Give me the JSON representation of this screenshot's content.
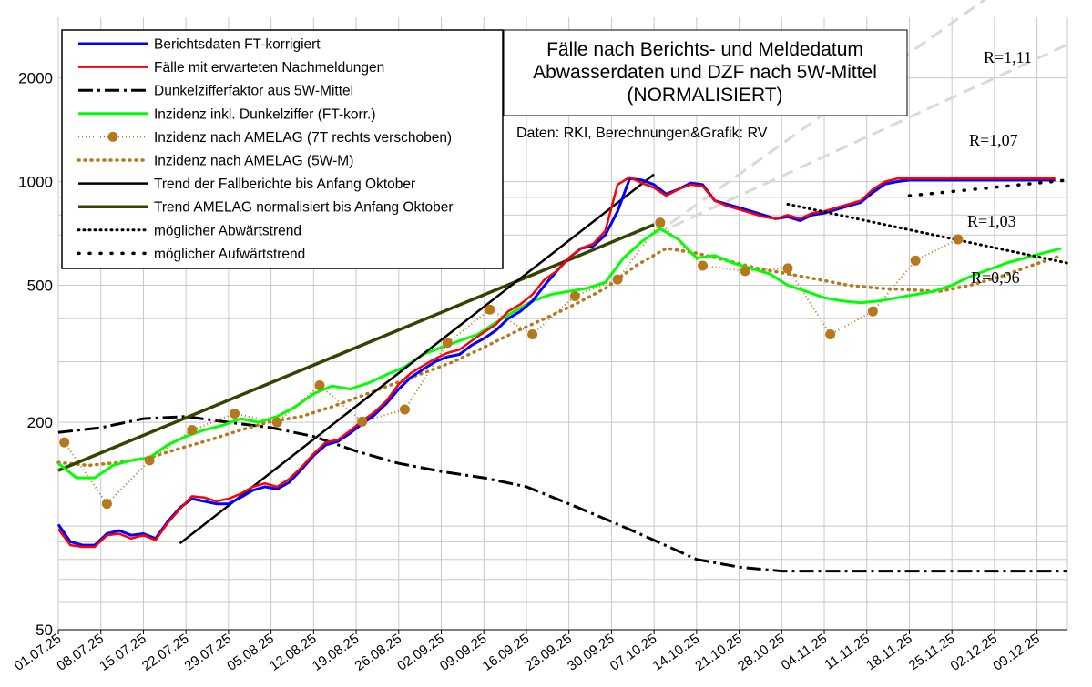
{
  "chart_data": {
    "type": "line",
    "title_lines": [
      "Fälle nach Berichts- und Meldedatum",
      "Abwasserdaten und DZF nach 5W-Mittel",
      "(NORMALISIERT)"
    ],
    "source": "Daten: RKI, Berechnungen&Grafik: RV",
    "y_scale": "log",
    "ylim": [
      50,
      3000
    ],
    "y_ticks": [
      50,
      200,
      500,
      1000,
      2000
    ],
    "x_range_days": [
      0,
      166
    ],
    "x_ticks": [
      "01.07.25",
      "08.07.25",
      "15.07.25",
      "22.07.25",
      "29.07.25",
      "05.08.25",
      "12.08.25",
      "19.08.25",
      "26.08.25",
      "02.09.25",
      "09.09.25",
      "16.09.25",
      "23.09.25",
      "30.09.25",
      "07.10.25",
      "14.10.25",
      "21.10.25",
      "28.10.25",
      "04.11.25",
      "11.11.25",
      "18.11.25",
      "25.11.25",
      "02.12.25",
      "09.12.25"
    ],
    "colors": {
      "berichtsdaten": "#0000ff",
      "nachmeldungen": "#ff0000",
      "dunkelziffer": "#000000",
      "inzidenz_dz": "#00ff00",
      "amelag": "#b5781d",
      "trend_fall": "#000000",
      "trend_amelag": "#334400",
      "projection": "#d9d9d9"
    },
    "series": [
      {
        "key": "berichtsdaten",
        "name": "Berichtsdaten FT-korrigiert",
        "x": [
          0,
          2,
          4,
          6,
          8,
          10,
          12,
          14,
          16,
          18,
          20,
          22,
          24,
          26,
          28,
          30,
          32,
          34,
          36,
          38,
          40,
          42,
          44,
          46,
          48,
          50,
          52,
          54,
          56,
          58,
          60,
          62,
          64,
          66,
          68,
          70,
          72,
          74,
          76,
          78,
          80,
          82,
          84,
          86,
          88,
          90,
          92,
          94,
          96,
          98,
          100,
          102,
          104,
          106,
          108,
          110,
          112,
          114,
          116,
          118,
          120,
          122,
          124,
          126,
          128,
          130,
          132,
          134,
          136,
          138,
          140,
          142,
          144,
          146,
          148,
          150,
          152,
          154,
          156,
          158,
          160,
          162,
          164
        ],
        "y": [
          101,
          90,
          88,
          88,
          95,
          97,
          94,
          95,
          92,
          103,
          113,
          120,
          118,
          116,
          116,
          121,
          127,
          130,
          128,
          134,
          146,
          160,
          172,
          176,
          186,
          198,
          210,
          227,
          250,
          270,
          285,
          300,
          310,
          315,
          335,
          350,
          370,
          400,
          420,
          450,
          500,
          550,
          600,
          640,
          650,
          700,
          820,
          1020,
          1010,
          980,
          920,
          950,
          990,
          980,
          880,
          860,
          840,
          820,
          800,
          780,
          790,
          770,
          800,
          810,
          830,
          850,
          870,
          930,
          985,
          1000,
          1010,
          1010,
          1010,
          1010,
          1010,
          1010,
          1010,
          1010,
          1010,
          1010,
          1010,
          1010,
          1010
        ]
      },
      {
        "key": "nachmeldungen",
        "name": "Fälle mit erwarteten Nachmeldungen",
        "x": [
          0,
          2,
          4,
          6,
          8,
          10,
          12,
          14,
          16,
          18,
          20,
          22,
          24,
          26,
          28,
          30,
          32,
          34,
          36,
          38,
          40,
          42,
          44,
          46,
          48,
          50,
          52,
          54,
          56,
          58,
          60,
          62,
          64,
          66,
          68,
          70,
          72,
          74,
          76,
          78,
          80,
          82,
          84,
          86,
          88,
          90,
          92,
          94,
          96,
          98,
          100,
          102,
          104,
          106,
          108,
          110,
          112,
          114,
          116,
          118,
          120,
          122,
          124,
          126,
          128,
          130,
          132,
          134,
          136,
          138,
          140,
          142,
          144,
          146,
          148,
          150,
          152,
          154,
          156,
          158,
          160,
          162,
          164
        ],
        "y": [
          98,
          88,
          87,
          87,
          94,
          95,
          92,
          94,
          91,
          102,
          112,
          122,
          121,
          118,
          120,
          124,
          130,
          133,
          130,
          137,
          148,
          162,
          175,
          178,
          189,
          202,
          214,
          231,
          258,
          278,
          292,
          306,
          318,
          325,
          345,
          365,
          385,
          420,
          440,
          470,
          520,
          550,
          600,
          640,
          660,
          720,
          980,
          1030,
          990,
          960,
          910,
          950,
          980,
          970,
          880,
          850,
          830,
          810,
          790,
          780,
          800,
          780,
          810,
          820,
          840,
          860,
          880,
          950,
          1000,
          1020,
          1020,
          1020,
          1020,
          1020,
          1020,
          1020,
          1020,
          1020,
          1020,
          1020,
          1020,
          1020,
          1020
        ]
      },
      {
        "key": "inzidenz_dz",
        "name": "Inzidenz inkl. Dunkelziffer (FT-korr.)",
        "x": [
          0,
          3,
          6,
          9,
          12,
          15,
          18,
          21,
          24,
          27,
          30,
          33,
          36,
          39,
          42,
          45,
          48,
          51,
          54,
          57,
          60,
          63,
          66,
          69,
          72,
          75,
          78,
          81,
          84,
          87,
          90,
          93,
          96,
          99,
          102,
          105,
          108,
          111,
          114,
          117,
          120,
          123,
          126,
          129,
          132,
          135,
          138,
          141,
          144,
          147,
          150,
          153,
          156,
          159,
          162,
          165
        ],
        "y": [
          152,
          138,
          138,
          150,
          155,
          158,
          172,
          182,
          190,
          196,
          205,
          200,
          208,
          222,
          242,
          255,
          250,
          260,
          275,
          290,
          315,
          330,
          345,
          360,
          390,
          420,
          450,
          470,
          480,
          490,
          510,
          600,
          670,
          730,
          680,
          600,
          610,
          580,
          560,
          540,
          500,
          480,
          460,
          450,
          445,
          450,
          460,
          470,
          480,
          500,
          530,
          555,
          580,
          600,
          620,
          640
        ]
      },
      {
        "key": "dunkelziffer",
        "name": "Dunkelzifferfaktor aus 5W-Mittel",
        "x": [
          0,
          7,
          14,
          21,
          28,
          35,
          42,
          49,
          56,
          63,
          70,
          77,
          84,
          91,
          98,
          105,
          112,
          119,
          126,
          133,
          140,
          147,
          154,
          161,
          166
        ],
        "y": [
          187,
          193,
          205,
          208,
          200,
          193,
          182,
          165,
          152,
          144,
          138,
          130,
          116,
          103,
          91,
          80,
          76,
          74,
          74,
          74,
          74,
          74,
          74,
          74,
          74
        ]
      },
      {
        "key": "amelag_dots",
        "name": "Inzidenz nach AMELAG (7T rechts verschoben)",
        "x": [
          1,
          8,
          15,
          22,
          29,
          36,
          43,
          50,
          57,
          64,
          71,
          78,
          85,
          92,
          99,
          106,
          113,
          120,
          127,
          134,
          141,
          148
        ],
        "y": [
          175,
          116,
          155,
          190,
          212,
          200,
          256,
          201,
          218,
          340,
          425,
          360,
          465,
          520,
          760,
          570,
          550,
          560,
          360,
          420,
          590,
          680
        ]
      },
      {
        "key": "amelag_5wm",
        "name": "Inzidenz nach AMELAG (5W-M)",
        "x": [
          0,
          5,
          10,
          15,
          20,
          25,
          30,
          35,
          40,
          45,
          50,
          55,
          60,
          65,
          70,
          75,
          80,
          85,
          90,
          95,
          100,
          105,
          110,
          115,
          120,
          125,
          130,
          135,
          140,
          145,
          150,
          155,
          160,
          165
        ],
        "y": [
          153,
          150,
          153,
          158,
          168,
          178,
          190,
          201,
          208,
          222,
          239,
          258,
          278,
          300,
          330,
          365,
          400,
          440,
          490,
          570,
          640,
          620,
          590,
          560,
          540,
          520,
          500,
          490,
          485,
          480,
          500,
          530,
          570,
          610
        ]
      },
      {
        "key": "trend_fall",
        "name": "Trend der Fallberichte bis Anfang Oktober",
        "x": [
          20,
          98
        ],
        "y": [
          89,
          1050
        ]
      },
      {
        "key": "trend_amelag",
        "name": "Trend AMELAG normalisiert bis Anfang Oktober",
        "x": [
          0,
          98
        ],
        "y": [
          145,
          750
        ]
      },
      {
        "key": "abwaerts",
        "name": "möglicher Abwärtstrend",
        "x": [
          120,
          166
        ],
        "y": [
          860,
          580
        ]
      },
      {
        "key": "aufwaerts",
        "name": "möglicher Aufwärtstrend",
        "x": [
          140,
          166
        ],
        "y": [
          910,
          1010
        ]
      },
      {
        "key": "proj_111",
        "name": "",
        "x": [
          98,
          166
        ],
        "y": [
          700,
          5000
        ]
      },
      {
        "key": "proj_107",
        "name": "",
        "x": [
          98,
          166
        ],
        "y": [
          700,
          2500
        ]
      }
    ],
    "annotations": [
      "R=1,11",
      "R=1,07",
      "R=1,03",
      "R=0,96"
    ]
  }
}
